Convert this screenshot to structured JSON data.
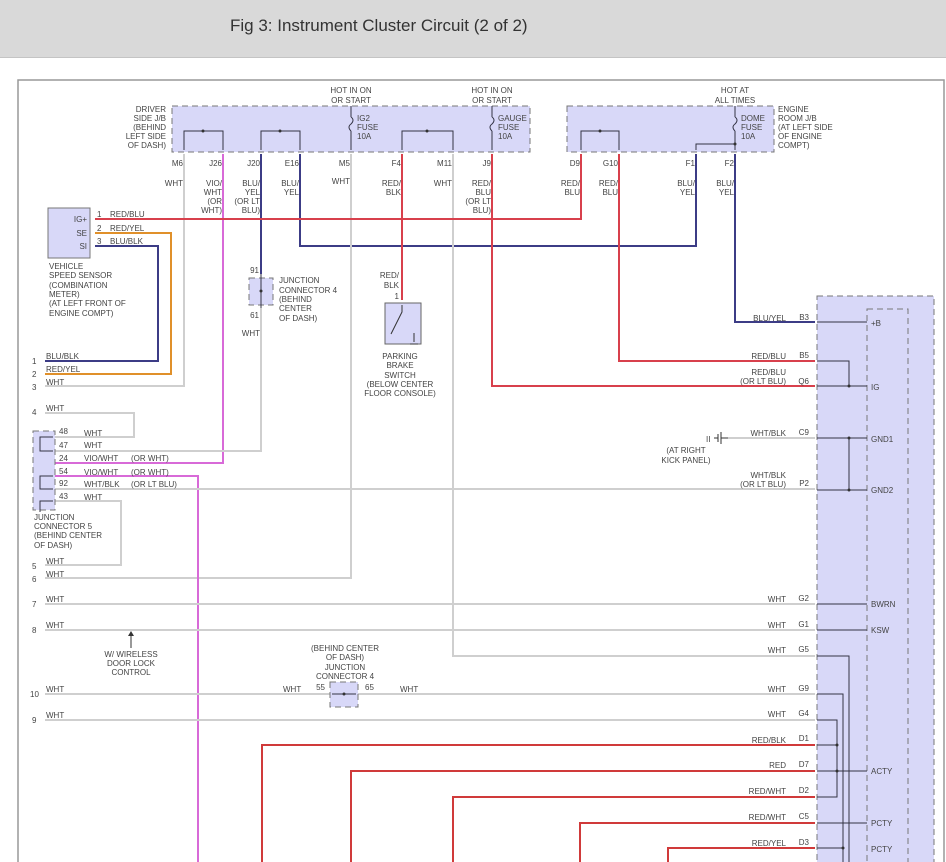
{
  "header": {
    "title": "Fig 3: Instrument Cluster Circuit (2 of 2)"
  },
  "colors": {
    "red_blu": "#d8404c",
    "red": "#d03a3a",
    "vio_wht": "#d86ad8",
    "blu_yel": "#3c3c86",
    "red_yel": "#e0902a",
    "wht": "#cfcfcf",
    "component_fill": "#d8d8f8"
  },
  "driver_jb": {
    "label": [
      "DRIVER",
      "SIDE J/B",
      "(BEHIND",
      "LEFT SIDE",
      "OF DASH)"
    ],
    "pins": [
      "M6",
      "J26",
      "J20",
      "E16",
      "M5",
      "F4",
      "M11",
      "J9"
    ],
    "ig2_fuse": {
      "hot": [
        "HOT IN ON",
        "OR START"
      ],
      "label": [
        "IG2",
        "FUSE",
        "10A"
      ]
    },
    "gauge_fuse": {
      "hot": [
        "HOT IN ON",
        "OR START"
      ],
      "label": [
        "GAUGE",
        "FUSE",
        "10A"
      ]
    },
    "wires": [
      [
        "WHT"
      ],
      [
        "VIO/",
        "WHT",
        "(OR",
        "WHT)"
      ],
      [
        "BLU/",
        "YEL",
        "(OR LT",
        "BLU)"
      ],
      [
        "BLU/",
        "YEL"
      ],
      [
        "WHT"
      ],
      [
        "RED/",
        "BLK"
      ],
      [
        "WHT"
      ],
      [
        "RED/",
        "BLU",
        "(OR LT",
        "BLU)"
      ]
    ]
  },
  "engine_jb": {
    "label": [
      "ENGINE",
      "ROOM J/B",
      "(AT LEFT SIDE",
      "OF ENGINE",
      "COMPT)"
    ],
    "pins": [
      "D9",
      "G10",
      "F1",
      "F2"
    ],
    "dome_fuse": {
      "hot": [
        "HOT AT",
        "ALL TIMES"
      ],
      "label": [
        "DOME",
        "FUSE",
        "10A"
      ]
    },
    "wires": [
      [
        "RED/",
        "BLU"
      ],
      [
        "RED/",
        "BLU"
      ],
      [
        "BLU/",
        "YEL"
      ],
      [
        "BLU/",
        "YEL"
      ]
    ]
  },
  "speed_sensor": {
    "pins": [
      {
        "name": "IG+",
        "num": "1",
        "wire": "RED/BLU"
      },
      {
        "name": "SE",
        "num": "2",
        "wire": "RED/YEL"
      },
      {
        "name": "SI",
        "num": "3",
        "wire": "BLU/BLK"
      }
    ],
    "label": [
      "VEHICLE",
      "SPEED SENSOR",
      "(COMBINATION",
      "METER)",
      "(AT LEFT FRONT OF",
      "ENGINE COMPT)"
    ]
  },
  "junction4_top": {
    "pin_in": "91",
    "pin_out": "61",
    "wire": "WHT",
    "label": [
      "JUNCTION",
      "CONNECTOR 4",
      "(BEHIND",
      "CENTER",
      "OF DASH)"
    ]
  },
  "parking_brake": {
    "wire": [
      "RED/",
      "BLK"
    ],
    "pin": "1",
    "label": [
      "PARKING",
      "BRAKE",
      "SWITCH",
      "(BELOW CENTER",
      "FLOOR CONSOLE)"
    ]
  },
  "left_rows": [
    {
      "num": "1",
      "wire": "BLU/BLK"
    },
    {
      "num": "2",
      "wire": "RED/YEL"
    },
    {
      "num": "3",
      "wire": "WHT"
    },
    {
      "num": "4",
      "wire": "WHT"
    },
    {
      "num": "5",
      "wire": "WHT"
    },
    {
      "num": "6",
      "wire": "WHT"
    },
    {
      "num": "7",
      "wire": "WHT"
    },
    {
      "num": "8",
      "wire": "WHT"
    },
    {
      "num": "10",
      "wire": "WHT"
    },
    {
      "num": "9",
      "wire": "WHT"
    }
  ],
  "junction5": {
    "pins": [
      {
        "num": "48",
        "wire": "WHT",
        "alt": ""
      },
      {
        "num": "47",
        "wire": "WHT",
        "alt": ""
      },
      {
        "num": "24",
        "wire": "VIO/WHT",
        "alt": "(OR WHT)"
      },
      {
        "num": "54",
        "wire": "VIO/WHT",
        "alt": "(OR WHT)"
      },
      {
        "num": "92",
        "wire": "WHT/BLK",
        "alt": "(OR LT BLU)"
      },
      {
        "num": "43",
        "wire": "WHT",
        "alt": ""
      }
    ],
    "label": [
      "JUNCTION",
      "CONNECTOR 5",
      "(BEHIND CENTER",
      "OF DASH)"
    ]
  },
  "wireless_note": [
    "W/ WIRELESS",
    "DOOR LOCK",
    "CONTROL"
  ],
  "junction4_mid": {
    "label": [
      "(BEHIND CENTER",
      "OF DASH)",
      "JUNCTION",
      "CONNECTOR 4"
    ],
    "pin_left": "55",
    "pin_right": "65",
    "wire_left": "WHT",
    "wire_right": "WHT"
  },
  "ground": {
    "label": [
      "(AT RIGHT",
      "KICK PANEL)"
    ],
    "mark": "II"
  },
  "cluster": {
    "pins": [
      {
        "pin": "B3",
        "wire": [
          "BLU/YEL"
        ],
        "terminal": "+B"
      },
      {
        "pin": "B5",
        "wire": [
          "RED/BLU"
        ],
        "terminal": ""
      },
      {
        "pin": "Q6",
        "wire": [
          "RED/BLU",
          "(OR LT BLU)"
        ],
        "terminal": "IG"
      },
      {
        "pin": "C9",
        "wire": [
          "WHT/BLK"
        ],
        "terminal": "GND1"
      },
      {
        "pin": "P2",
        "wire": [
          "WHT/BLK",
          "(OR LT BLU)"
        ],
        "terminal": "GND2"
      },
      {
        "pin": "G2",
        "wire": [
          "WHT"
        ],
        "terminal": "BWRN"
      },
      {
        "pin": "G1",
        "wire": [
          "WHT"
        ],
        "terminal": "KSW"
      },
      {
        "pin": "G5",
        "wire": [
          "WHT"
        ],
        "terminal": ""
      },
      {
        "pin": "G9",
        "wire": [
          "WHT"
        ],
        "terminal": ""
      },
      {
        "pin": "G4",
        "wire": [
          "WHT"
        ],
        "terminal": ""
      },
      {
        "pin": "D1",
        "wire": [
          "RED/BLK"
        ],
        "terminal": ""
      },
      {
        "pin": "D7",
        "wire": [
          "RED"
        ],
        "terminal": "ACTY"
      },
      {
        "pin": "D2",
        "wire": [
          "RED/WHT"
        ],
        "terminal": ""
      },
      {
        "pin": "C5",
        "wire": [
          "RED/WHT"
        ],
        "terminal": "PCTY"
      },
      {
        "pin": "D3",
        "wire": [
          "RED/YEL"
        ],
        "terminal": "PCTY"
      }
    ]
  }
}
